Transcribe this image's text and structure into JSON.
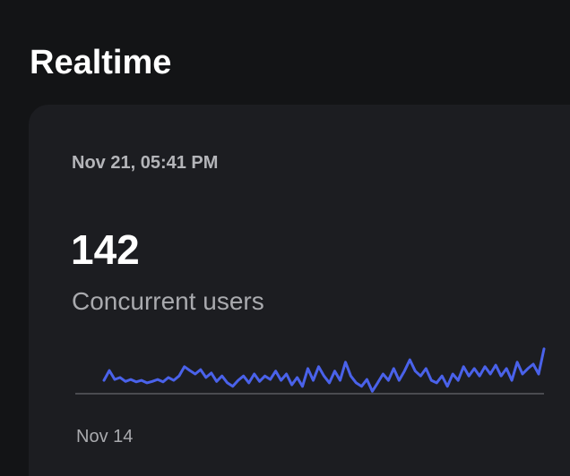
{
  "header": {
    "title": "Realtime"
  },
  "card": {
    "timestamp": "Nov 21, 05:41 PM",
    "value": 142,
    "label": "Concurrent users"
  },
  "chart_data": {
    "type": "line",
    "start_label": "Nov 14",
    "color": "#4a62ea",
    "ylim": [
      0,
      100
    ],
    "values": [
      27,
      47,
      29,
      33,
      25,
      29,
      24,
      27,
      22,
      25,
      29,
      24,
      33,
      27,
      36,
      55,
      47,
      40,
      49,
      33,
      42,
      25,
      36,
      22,
      15,
      27,
      36,
      22,
      40,
      25,
      36,
      29,
      46,
      27,
      40,
      18,
      33,
      15,
      51,
      27,
      55,
      36,
      22,
      46,
      27,
      64,
      36,
      22,
      15,
      29,
      5,
      22,
      40,
      27,
      51,
      27,
      46,
      69,
      46,
      36,
      51,
      27,
      22,
      36,
      15,
      40,
      27,
      55,
      36,
      51,
      36,
      55,
      40,
      58,
      36,
      51,
      27,
      64,
      40,
      51,
      60,
      40,
      91
    ]
  }
}
